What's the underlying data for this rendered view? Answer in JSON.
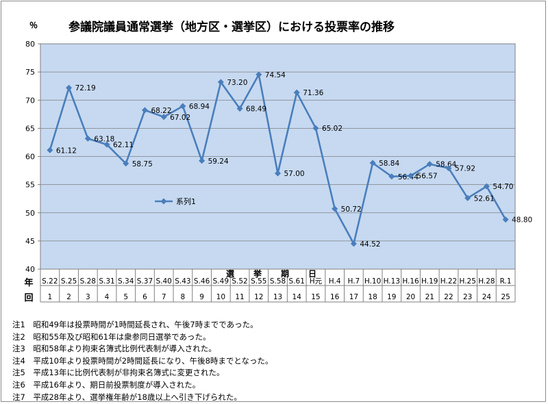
{
  "chart_data": {
    "type": "line",
    "title": "参議院議員通常選挙（地方区・選挙区）における投票率の推移",
    "y_unit": "％",
    "xlabel": "選　挙　期　日",
    "row_label_era": "年",
    "row_label_round": "回",
    "ylim": [
      40,
      80
    ],
    "y_ticks": [
      40,
      45,
      50,
      55,
      60,
      65,
      70,
      75,
      80
    ],
    "grid": true,
    "legend_position": "center-left",
    "categories": [
      "S.22",
      "S.25",
      "S.28",
      "S.31",
      "S.34",
      "S.37",
      "S.40",
      "S.43",
      "S.46",
      "S.49",
      "S.52",
      "S.55",
      "S.58",
      "S.61",
      "H元",
      "H.4",
      "H.7",
      "H.10",
      "H.13",
      "H.16",
      "H.19",
      "H.22",
      "H.25",
      "H.28",
      "R.1"
    ],
    "rounds": [
      "1",
      "2",
      "3",
      "4",
      "5",
      "6",
      "7",
      "8",
      "9",
      "10",
      "11",
      "12",
      "13",
      "14",
      "15",
      "16",
      "17",
      "18",
      "19",
      "20",
      "21",
      "22",
      "23",
      "24",
      "25"
    ],
    "series": [
      {
        "name": "系列1",
        "values": [
          61.12,
          72.19,
          63.18,
          62.11,
          58.75,
          68.22,
          67.02,
          68.94,
          59.24,
          73.2,
          68.49,
          74.54,
          57.0,
          71.36,
          65.02,
          50.72,
          44.52,
          58.84,
          56.44,
          56.57,
          58.64,
          57.92,
          52.61,
          54.7,
          48.8
        ],
        "labels": [
          "61.12",
          "72.19",
          "63.18",
          "62.11",
          "58.75",
          "68.22",
          "67.02",
          "68.94",
          "59.24",
          "73.20",
          "68.49",
          "74.54",
          "57.00",
          "71.36",
          "65.02",
          "50.72",
          "44.52",
          "58.84",
          "56.44",
          "56.57",
          "58.64",
          "57.92",
          "52.61",
          "54.70",
          "48.80"
        ],
        "color": "#4a7ebb"
      }
    ],
    "plot_background": "#c6d9f1"
  },
  "notes": [
    "注1　昭和49年は投票時間が1時間延長され、午後7時までであった。",
    "注2　昭和55年及び昭和61年は衆参同日選挙であった。",
    "注3　昭和58年より拘束名簿式比例代表制が導入された。",
    "注4　平成10年より投票時間が2時間延長になり、午後8時までとなった。",
    "注5　平成13年に比例代表制が非拘束名簿式に変更された。",
    "注6　平成16年より、期日前投票制度が導入された。",
    "注7　平成28年より、選挙権年齢が18歳以上へ引き下げられた。"
  ]
}
